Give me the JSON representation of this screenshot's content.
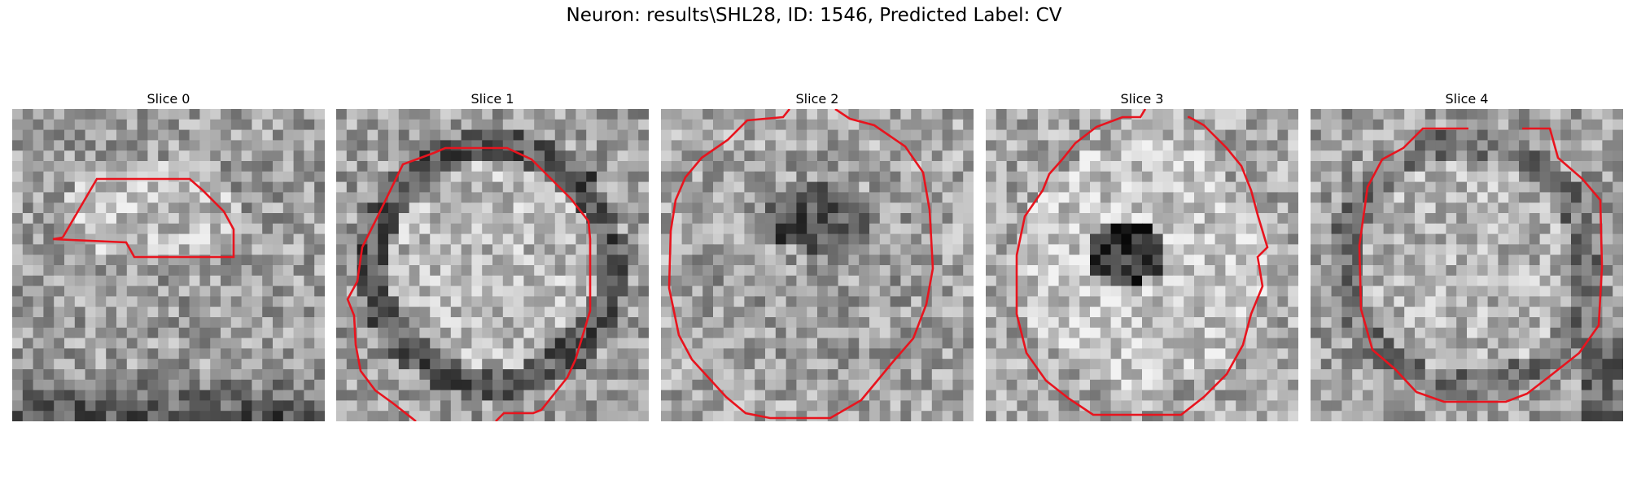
{
  "figure": {
    "title": "Neuron: results\\SHL28, ID: 1546, Predicted Label: CV"
  },
  "slices": [
    {
      "title": "Slice 0",
      "pattern": "blob-bottom-dark"
    },
    {
      "title": "Slice 1",
      "pattern": "ring-dark"
    },
    {
      "title": "Slice 2",
      "pattern": "center-dark-texture"
    },
    {
      "title": "Slice 3",
      "pattern": "bright-ring-dark-core"
    },
    {
      "title": "Slice 4",
      "pattern": "ring-soft"
    }
  ],
  "colors": {
    "contour": "#e8141e"
  }
}
